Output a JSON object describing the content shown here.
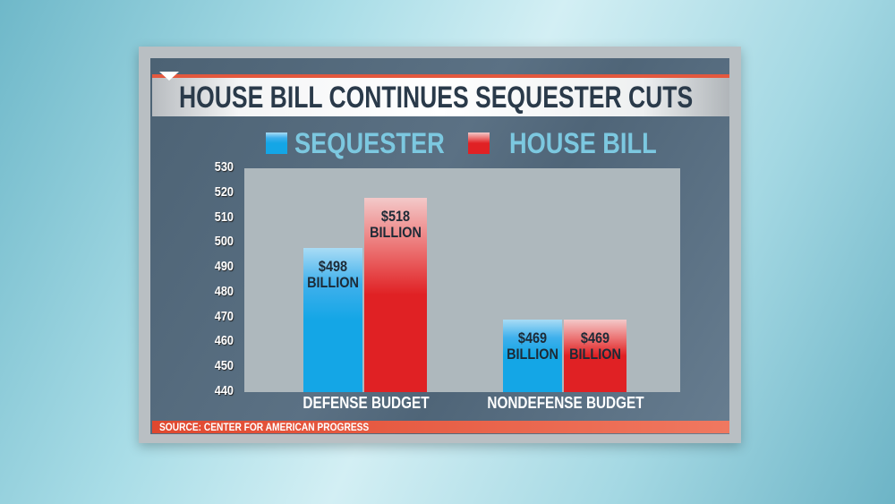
{
  "chart_data": {
    "type": "bar",
    "title": "HOUSE BILL CONTINUES SEQUESTER CUTS",
    "categories": [
      "DEFENSE BUDGET",
      "NONDEFENSE BUDGET"
    ],
    "series": [
      {
        "name": "SEQUESTER",
        "color": "#14a6e6",
        "values": [
          498,
          469
        ],
        "labels": [
          "$498 BILLION",
          "$469 BILLION"
        ]
      },
      {
        "name": "HOUSE BILL",
        "color": "#e02124",
        "values": [
          518,
          469
        ],
        "labels": [
          "$518 BILLION",
          "$469 BILLION"
        ]
      }
    ],
    "ylim": [
      440,
      530
    ],
    "yticks": [
      "530",
      "520",
      "510",
      "500",
      "490",
      "480",
      "470",
      "460",
      "450",
      "440"
    ],
    "legend": "top",
    "grid": false,
    "source": "SOURCE: CENTER FOR AMERICAN PROGRESS"
  }
}
